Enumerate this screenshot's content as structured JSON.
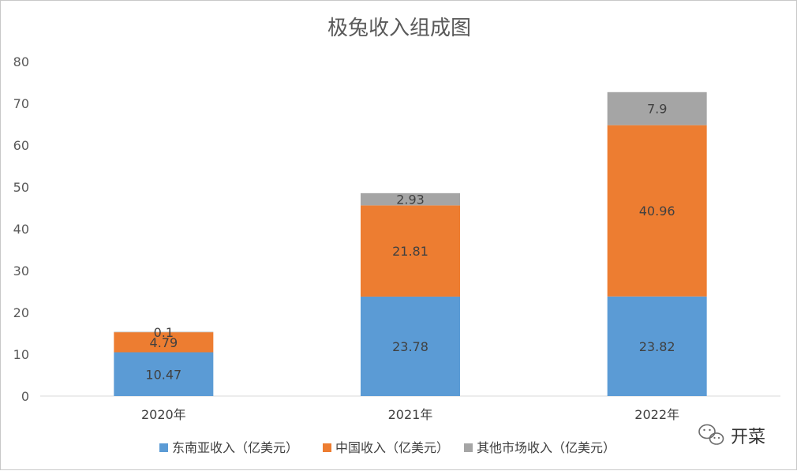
{
  "chart_data": {
    "type": "bar",
    "stacked": true,
    "title": "极兔收入组成图",
    "xlabel": "",
    "ylabel": "",
    "categories": [
      "2020年",
      "2021年",
      "2022年"
    ],
    "ylim": [
      0,
      80
    ],
    "yticks": [
      0,
      10,
      20,
      30,
      40,
      50,
      60,
      70,
      80
    ],
    "series": [
      {
        "name": "东南亚收入（亿美元）",
        "values": [
          10.47,
          23.78,
          23.82
        ],
        "color": "#5b9bd5"
      },
      {
        "name": "中国收入（亿美元）",
        "values": [
          4.79,
          21.81,
          40.96
        ],
        "color": "#ed7d31"
      },
      {
        "name": "其他市场收入（亿美元）",
        "values": [
          0.1,
          2.93,
          7.9
        ],
        "color": "#a5a5a5"
      }
    ],
    "data_labels": [
      [
        "10.47",
        "23.78",
        "23.82"
      ],
      [
        "4.79",
        "21.81",
        "40.96"
      ],
      [
        "0.1",
        "2.93",
        "7.9"
      ]
    ],
    "legend_position": "bottom",
    "grid": false
  },
  "watermark": {
    "text": "开菜",
    "icon": "wechat-icon"
  }
}
